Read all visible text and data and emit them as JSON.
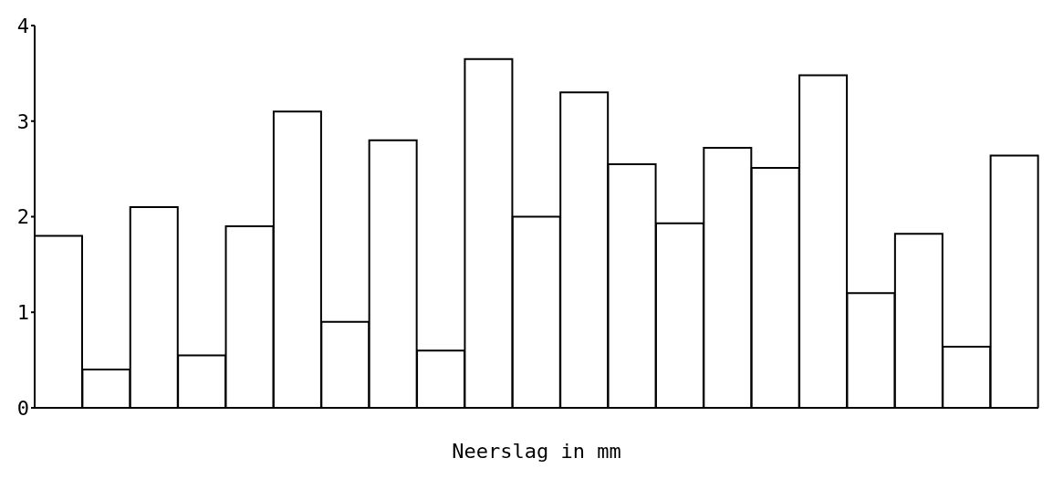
{
  "chart_data": {
    "type": "bar",
    "xlabel": "Neerslag in mm",
    "categories": [
      null,
      null,
      null,
      null,
      null,
      null,
      null,
      null,
      null,
      null,
      null,
      null,
      null,
      null,
      null,
      null,
      null,
      null,
      null,
      null,
      null
    ],
    "values": [
      1.8,
      0.4,
      2.1,
      0.55,
      1.9,
      3.1,
      0.9,
      2.8,
      0.6,
      3.65,
      2.0,
      3.3,
      2.55,
      1.93,
      2.72,
      2.51,
      3.48,
      1.2,
      1.82,
      0.64,
      2.64
    ],
    "color": "#ffffff",
    "ylim": [
      0,
      4
    ],
    "yticks": [
      0,
      1,
      2,
      3,
      4
    ],
    "grid": false
  }
}
